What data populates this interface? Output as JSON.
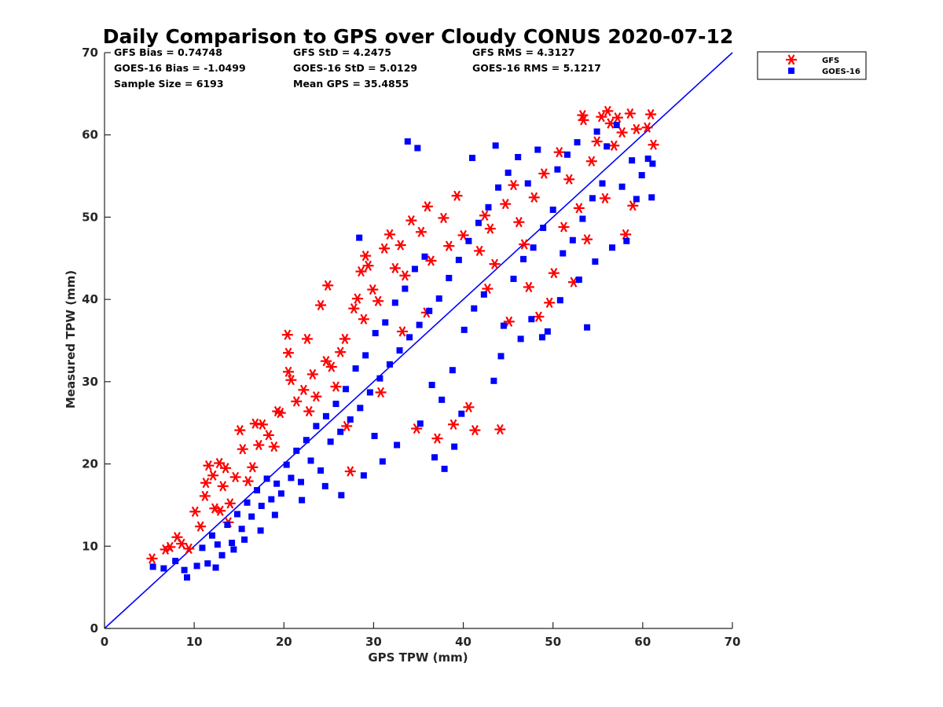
{
  "chart_data": {
    "type": "scatter",
    "title": "Daily Comparison to GPS over Cloudy CONUS 2020-07-12",
    "xlabel": "GPS TPW (mm)",
    "ylabel": "Measured TPW (mm)",
    "xlim": [
      0,
      70
    ],
    "ylim": [
      0,
      70
    ],
    "xticks": [
      "0",
      "10",
      "20",
      "30",
      "40",
      "50",
      "60",
      "70"
    ],
    "yticks": [
      "0",
      "10",
      "20",
      "30",
      "40",
      "50",
      "60",
      "70"
    ],
    "grid": false,
    "legend_position": "outside-top-right",
    "one_to_one_line": {
      "from": [
        0,
        0
      ],
      "to": [
        70,
        70
      ],
      "color": "#0000ff"
    },
    "stats": [
      [
        "GFS Bias = 0.74748",
        "GFS StD = 4.2475",
        "GFS RMS = 4.3127"
      ],
      [
        "GOES-16 Bias = -1.0499",
        "GOES-16 StD = 5.0129",
        "GOES-16 RMS = 5.1217"
      ],
      [
        "Sample Size = 6193",
        "Mean GPS = 35.4855",
        ""
      ]
    ],
    "series": [
      {
        "name": "GFS",
        "marker": "asterisk",
        "color": "#ff0000",
        "points": [
          [
            5.3,
            8.5
          ],
          [
            6.8,
            9.6
          ],
          [
            7.3,
            9.9
          ],
          [
            8.1,
            11.1
          ],
          [
            8.6,
            10.3
          ],
          [
            9.4,
            9.7
          ],
          [
            10.1,
            14.2
          ],
          [
            10.7,
            12.4
          ],
          [
            11.2,
            16.1
          ],
          [
            11.6,
            19.8
          ],
          [
            12.1,
            18.6
          ],
          [
            12.3,
            14.6
          ],
          [
            12.8,
            20.1
          ],
          [
            13.2,
            17.3
          ],
          [
            13.5,
            19.5
          ],
          [
            14.0,
            15.2
          ],
          [
            14.6,
            18.4
          ],
          [
            15.1,
            24.1
          ],
          [
            15.4,
            21.8
          ],
          [
            16.0,
            17.9
          ],
          [
            16.5,
            19.6
          ],
          [
            17.2,
            22.3
          ],
          [
            17.6,
            24.8
          ],
          [
            18.3,
            23.5
          ],
          [
            18.9,
            22.1
          ],
          [
            19.6,
            26.2
          ],
          [
            20.4,
            35.7
          ],
          [
            20.5,
            33.5
          ],
          [
            20.5,
            31.2
          ],
          [
            20.8,
            30.2
          ],
          [
            21.4,
            27.6
          ],
          [
            22.2,
            29.0
          ],
          [
            22.8,
            26.4
          ],
          [
            23.2,
            30.9
          ],
          [
            23.6,
            28.2
          ],
          [
            24.1,
            39.3
          ],
          [
            24.7,
            32.5
          ],
          [
            25.3,
            31.8
          ],
          [
            25.8,
            29.4
          ],
          [
            26.3,
            33.6
          ],
          [
            26.8,
            35.2
          ],
          [
            27.4,
            19.1
          ],
          [
            27.8,
            38.9
          ],
          [
            28.2,
            40.1
          ],
          [
            28.6,
            43.4
          ],
          [
            28.9,
            37.6
          ],
          [
            29.1,
            45.3
          ],
          [
            29.4,
            44.1
          ],
          [
            29.9,
            41.2
          ],
          [
            30.5,
            39.8
          ],
          [
            31.2,
            46.2
          ],
          [
            31.8,
            47.9
          ],
          [
            32.4,
            43.8
          ],
          [
            33.0,
            46.6
          ],
          [
            33.5,
            42.9
          ],
          [
            34.2,
            49.6
          ],
          [
            34.8,
            24.3
          ],
          [
            35.3,
            48.2
          ],
          [
            36.0,
            51.3
          ],
          [
            36.4,
            44.7
          ],
          [
            37.1,
            23.1
          ],
          [
            37.8,
            49.9
          ],
          [
            38.4,
            46.5
          ],
          [
            38.9,
            24.8
          ],
          [
            39.3,
            52.6
          ],
          [
            40.0,
            47.8
          ],
          [
            40.6,
            26.9
          ],
          [
            41.3,
            24.1
          ],
          [
            41.8,
            45.9
          ],
          [
            42.4,
            50.2
          ],
          [
            43.0,
            48.6
          ],
          [
            43.5,
            44.3
          ],
          [
            44.1,
            24.2
          ],
          [
            44.7,
            51.6
          ],
          [
            45.1,
            37.3
          ],
          [
            45.6,
            53.9
          ],
          [
            46.2,
            49.4
          ],
          [
            46.8,
            46.7
          ],
          [
            47.3,
            41.5
          ],
          [
            47.9,
            52.4
          ],
          [
            48.4,
            37.9
          ],
          [
            49.0,
            55.3
          ],
          [
            49.6,
            39.6
          ],
          [
            50.1,
            43.2
          ],
          [
            50.7,
            57.9
          ],
          [
            51.2,
            48.8
          ],
          [
            51.8,
            54.6
          ],
          [
            52.3,
            42.1
          ],
          [
            52.9,
            51.1
          ],
          [
            53.3,
            62.4
          ],
          [
            53.4,
            61.8
          ],
          [
            53.8,
            47.3
          ],
          [
            54.3,
            56.8
          ],
          [
            54.9,
            59.2
          ],
          [
            55.4,
            62.2
          ],
          [
            55.8,
            52.3
          ],
          [
            56.1,
            62.9
          ],
          [
            56.4,
            61.4
          ],
          [
            56.8,
            58.7
          ],
          [
            57.2,
            62.1
          ],
          [
            57.7,
            60.3
          ],
          [
            58.1,
            47.9
          ],
          [
            58.6,
            62.6
          ],
          [
            58.9,
            51.4
          ],
          [
            59.3,
            60.7
          ],
          [
            60.5,
            60.9
          ],
          [
            60.9,
            62.5
          ],
          [
            61.2,
            58.8
          ],
          [
            22.6,
            35.2
          ],
          [
            24.9,
            41.7
          ],
          [
            19.3,
            26.4
          ],
          [
            16.8,
            24.9
          ],
          [
            12.9,
            14.3
          ],
          [
            11.3,
            17.7
          ],
          [
            13.8,
            12.9
          ],
          [
            27.0,
            24.6
          ],
          [
            33.2,
            36.1
          ],
          [
            30.8,
            28.7
          ],
          [
            35.9,
            38.4
          ],
          [
            42.7,
            41.3
          ]
        ]
      },
      {
        "name": "GOES-16",
        "marker": "square",
        "color": "#0000ff",
        "points": [
          [
            5.4,
            7.5
          ],
          [
            6.6,
            7.3
          ],
          [
            7.9,
            8.2
          ],
          [
            8.9,
            7.1
          ],
          [
            9.2,
            6.2
          ],
          [
            10.3,
            7.6
          ],
          [
            10.9,
            9.8
          ],
          [
            11.5,
            7.9
          ],
          [
            12.0,
            11.3
          ],
          [
            12.6,
            10.2
          ],
          [
            13.1,
            8.9
          ],
          [
            13.7,
            12.6
          ],
          [
            14.2,
            10.4
          ],
          [
            14.8,
            13.9
          ],
          [
            15.3,
            12.1
          ],
          [
            15.9,
            15.3
          ],
          [
            16.4,
            13.6
          ],
          [
            17.0,
            16.8
          ],
          [
            17.5,
            14.9
          ],
          [
            18.1,
            18.2
          ],
          [
            18.6,
            15.7
          ],
          [
            19.2,
            17.6
          ],
          [
            19.7,
            16.4
          ],
          [
            20.3,
            19.9
          ],
          [
            20.8,
            18.3
          ],
          [
            21.4,
            21.6
          ],
          [
            21.9,
            17.8
          ],
          [
            22.5,
            22.9
          ],
          [
            23.0,
            20.4
          ],
          [
            23.6,
            24.6
          ],
          [
            24.1,
            19.2
          ],
          [
            24.7,
            25.8
          ],
          [
            25.2,
            22.7
          ],
          [
            25.8,
            27.3
          ],
          [
            26.3,
            23.9
          ],
          [
            26.9,
            29.1
          ],
          [
            27.4,
            25.4
          ],
          [
            28.0,
            31.6
          ],
          [
            28.4,
            47.5
          ],
          [
            28.5,
            26.8
          ],
          [
            29.1,
            33.2
          ],
          [
            29.6,
            28.7
          ],
          [
            30.2,
            35.9
          ],
          [
            30.7,
            30.4
          ],
          [
            31.3,
            37.2
          ],
          [
            31.8,
            32.1
          ],
          [
            32.4,
            39.6
          ],
          [
            32.9,
            33.8
          ],
          [
            33.5,
            41.3
          ],
          [
            34.0,
            35.4
          ],
          [
            34.6,
            43.7
          ],
          [
            35.1,
            36.9
          ],
          [
            35.7,
            45.2
          ],
          [
            36.2,
            38.6
          ],
          [
            36.8,
            20.8
          ],
          [
            37.3,
            40.1
          ],
          [
            37.9,
            19.4
          ],
          [
            38.4,
            42.6
          ],
          [
            39.0,
            22.1
          ],
          [
            39.5,
            44.8
          ],
          [
            40.1,
            36.3
          ],
          [
            40.6,
            47.1
          ],
          [
            41.2,
            38.9
          ],
          [
            41.7,
            49.3
          ],
          [
            42.3,
            40.6
          ],
          [
            42.8,
            51.2
          ],
          [
            43.4,
            30.1
          ],
          [
            43.9,
            53.6
          ],
          [
            44.5,
            36.8
          ],
          [
            45.0,
            55.4
          ],
          [
            45.6,
            42.5
          ],
          [
            46.1,
            57.3
          ],
          [
            46.7,
            44.9
          ],
          [
            47.2,
            54.1
          ],
          [
            47.8,
            46.3
          ],
          [
            48.3,
            58.2
          ],
          [
            48.9,
            48.7
          ],
          [
            49.4,
            36.1
          ],
          [
            50.0,
            50.9
          ],
          [
            50.5,
            55.8
          ],
          [
            51.1,
            45.6
          ],
          [
            51.6,
            57.6
          ],
          [
            52.2,
            47.2
          ],
          [
            52.7,
            59.1
          ],
          [
            53.3,
            49.8
          ],
          [
            53.8,
            36.6
          ],
          [
            54.4,
            52.3
          ],
          [
            54.9,
            60.4
          ],
          [
            55.5,
            54.1
          ],
          [
            56.0,
            58.6
          ],
          [
            56.6,
            46.3
          ],
          [
            57.1,
            61.2
          ],
          [
            57.7,
            53.7
          ],
          [
            58.2,
            47.1
          ],
          [
            58.8,
            56.9
          ],
          [
            59.3,
            52.2
          ],
          [
            59.9,
            55.1
          ],
          [
            60.6,
            57.1
          ],
          [
            61.0,
            52.4
          ],
          [
            61.1,
            56.5
          ],
          [
            33.8,
            59.2
          ],
          [
            34.9,
            58.4
          ],
          [
            41.0,
            57.2
          ],
          [
            43.6,
            58.7
          ],
          [
            22.0,
            15.6
          ],
          [
            24.6,
            17.3
          ],
          [
            26.4,
            16.2
          ],
          [
            30.1,
            23.4
          ],
          [
            32.6,
            22.3
          ],
          [
            35.2,
            24.9
          ],
          [
            37.6,
            27.8
          ],
          [
            39.8,
            26.1
          ],
          [
            19.0,
            13.8
          ],
          [
            17.4,
            11.9
          ],
          [
            15.6,
            10.8
          ],
          [
            14.4,
            9.6
          ],
          [
            12.4,
            7.4
          ],
          [
            28.9,
            18.6
          ],
          [
            31.0,
            20.3
          ],
          [
            36.5,
            29.6
          ],
          [
            38.8,
            31.4
          ],
          [
            44.2,
            33.1
          ],
          [
            46.4,
            35.2
          ],
          [
            47.6,
            37.6
          ],
          [
            50.8,
            39.9
          ],
          [
            52.9,
            42.4
          ],
          [
            54.7,
            44.6
          ],
          [
            48.8,
            35.4
          ]
        ]
      }
    ]
  }
}
